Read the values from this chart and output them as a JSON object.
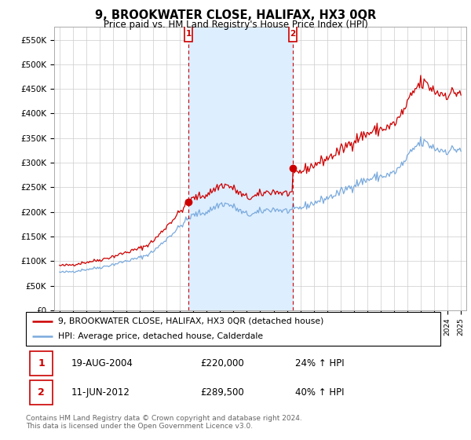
{
  "title": "9, BROOKWATER CLOSE, HALIFAX, HX3 0QR",
  "subtitle": "Price paid vs. HM Land Registry's House Price Index (HPI)",
  "legend_line1": "9, BROOKWATER CLOSE, HALIFAX, HX3 0QR (detached house)",
  "legend_line2": "HPI: Average price, detached house, Calderdale",
  "transaction1_date": "19-AUG-2004",
  "transaction1_price": "£220,000",
  "transaction1_hpi": "24% ↑ HPI",
  "transaction2_date": "11-JUN-2012",
  "transaction2_price": "£289,500",
  "transaction2_hpi": "40% ↑ HPI",
  "footnote": "Contains HM Land Registry data © Crown copyright and database right 2024.\nThis data is licensed under the Open Government Licence v3.0.",
  "hpi_color": "#7aaadd",
  "price_color": "#cc0000",
  "shade_color": "#ddeeff",
  "ylim": [
    0,
    577000
  ],
  "yticks": [
    0,
    50000,
    100000,
    150000,
    200000,
    250000,
    300000,
    350000,
    400000,
    450000,
    500000,
    550000
  ],
  "ytick_labels": [
    "£0",
    "£50K",
    "£100K",
    "£150K",
    "£200K",
    "£250K",
    "£300K",
    "£350K",
    "£400K",
    "£450K",
    "£500K",
    "£550K"
  ],
  "background_color": "#ffffff",
  "plot_bg_color": "#ffffff",
  "grid_color": "#cccccc",
  "transaction1_x": 2004.64,
  "transaction1_y": 220000,
  "transaction2_x": 2012.44,
  "transaction2_y": 289500,
  "xlim_left": 1994.6,
  "xlim_right": 2025.4
}
